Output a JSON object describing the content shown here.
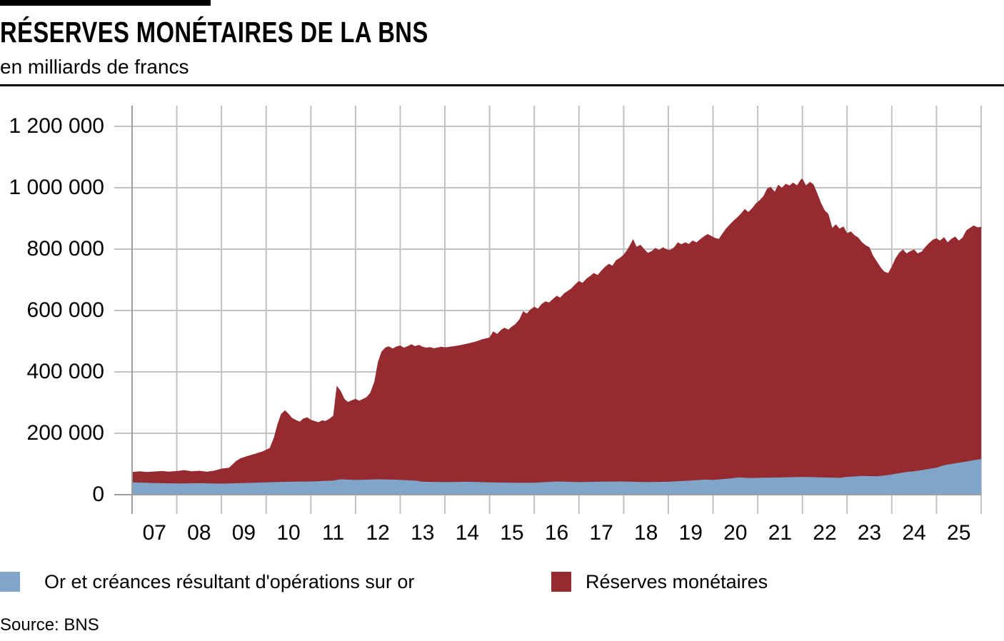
{
  "header": {
    "title": "RÉSERVES MONÉTAIRES DE LA BNS",
    "subtitle": "en milliards de francs"
  },
  "source": "Source: BNS",
  "colors": {
    "gold": "#7FA6C9",
    "reserves": "#952A31",
    "grid": "#C2C2C2",
    "axis": "#9E9E9E",
    "text": "#000000",
    "background": "#FFFFFF"
  },
  "legend": [
    {
      "label": "Or et créances résultant d'opérations sur or",
      "color": "#7FA6C9"
    },
    {
      "label": "Réserves monétaires",
      "color": "#952A31"
    }
  ],
  "chart_data": {
    "type": "area",
    "stacked": true,
    "title": "RÉSERVES MONÉTAIRES DE LA BNS",
    "unit_label": "en milliards de francs",
    "grid": true,
    "legend_position": "bottom",
    "x_range": [
      2007,
      2026
    ],
    "ylim": [
      0,
      1200000
    ],
    "y_ticks": {
      "values": [
        0,
        200000,
        400000,
        600000,
        800000,
        1000000,
        1200000
      ],
      "labels": [
        "0",
        "200 000",
        "400 000",
        "600 000",
        "800 000",
        "1 000 000",
        "1 200 000"
      ]
    },
    "x_tick_labels": [
      "07",
      "08",
      "09",
      "10",
      "11",
      "12",
      "13",
      "14",
      "15",
      "16",
      "17",
      "18",
      "19",
      "20",
      "21",
      "22",
      "23",
      "24",
      "25"
    ],
    "note": "x values are decimal years; series[1] points trace the stacked top line (total monetary reserves); series[0] is the gold layer drawn from 0.",
    "series": [
      {
        "name": "Or et créances résultant d'opérations sur or",
        "color": "#7FA6C9",
        "points": [
          [
            2007.0,
            40000
          ],
          [
            2007.5,
            38000
          ],
          [
            2008.0,
            36500
          ],
          [
            2008.5,
            37500
          ],
          [
            2009.0,
            36000
          ],
          [
            2009.5,
            38000
          ],
          [
            2010.0,
            40000
          ],
          [
            2010.5,
            42000
          ],
          [
            2011.0,
            43000
          ],
          [
            2011.5,
            46000
          ],
          [
            2011.67,
            50000
          ],
          [
            2012.0,
            48000
          ],
          [
            2012.5,
            50000
          ],
          [
            2012.83,
            49000
          ],
          [
            2013.0,
            48000
          ],
          [
            2013.33,
            46000
          ],
          [
            2013.5,
            42000
          ],
          [
            2014.0,
            41000
          ],
          [
            2014.5,
            42000
          ],
          [
            2015.0,
            40000
          ],
          [
            2015.5,
            39000
          ],
          [
            2016.0,
            39000
          ],
          [
            2016.5,
            43000
          ],
          [
            2017.0,
            41000
          ],
          [
            2017.5,
            42500
          ],
          [
            2018.0,
            43000
          ],
          [
            2018.5,
            41000
          ],
          [
            2019.0,
            42000
          ],
          [
            2019.5,
            46000
          ],
          [
            2019.83,
            49000
          ],
          [
            2020.0,
            48000
          ],
          [
            2020.33,
            52000
          ],
          [
            2020.58,
            56000
          ],
          [
            2020.83,
            54000
          ],
          [
            2021.0,
            55000
          ],
          [
            2021.5,
            56000
          ],
          [
            2022.0,
            58000
          ],
          [
            2022.5,
            56000
          ],
          [
            2022.83,
            55000
          ],
          [
            2023.0,
            58000
          ],
          [
            2023.33,
            61000
          ],
          [
            2023.67,
            60000
          ],
          [
            2023.92,
            64000
          ],
          [
            2024.17,
            70000
          ],
          [
            2024.33,
            74000
          ],
          [
            2024.5,
            76000
          ],
          [
            2024.67,
            80000
          ],
          [
            2024.83,
            84000
          ],
          [
            2025.0,
            88000
          ],
          [
            2025.17,
            96000
          ],
          [
            2025.33,
            100000
          ],
          [
            2025.5,
            104000
          ],
          [
            2025.67,
            108000
          ],
          [
            2025.83,
            112000
          ],
          [
            2026.0,
            116000
          ]
        ]
      },
      {
        "name": "Réserves monétaires",
        "color": "#952A31",
        "points": [
          [
            2007.0,
            74000
          ],
          [
            2007.17,
            76000
          ],
          [
            2007.33,
            74000
          ],
          [
            2007.5,
            75500
          ],
          [
            2007.67,
            77000
          ],
          [
            2007.83,
            75000
          ],
          [
            2008.0,
            77000
          ],
          [
            2008.17,
            80000
          ],
          [
            2008.33,
            76000
          ],
          [
            2008.5,
            78000
          ],
          [
            2008.67,
            75000
          ],
          [
            2008.83,
            78000
          ],
          [
            2009.0,
            85000
          ],
          [
            2009.17,
            88000
          ],
          [
            2009.33,
            110000
          ],
          [
            2009.42,
            118000
          ],
          [
            2009.58,
            126000
          ],
          [
            2009.75,
            133000
          ],
          [
            2009.92,
            141000
          ],
          [
            2010.08,
            152000
          ],
          [
            2010.17,
            185000
          ],
          [
            2010.25,
            228000
          ],
          [
            2010.33,
            262000
          ],
          [
            2010.42,
            275000
          ],
          [
            2010.5,
            264000
          ],
          [
            2010.58,
            250000
          ],
          [
            2010.67,
            243000
          ],
          [
            2010.75,
            238000
          ],
          [
            2010.83,
            248000
          ],
          [
            2010.92,
            252000
          ],
          [
            2011.0,
            244000
          ],
          [
            2011.08,
            240000
          ],
          [
            2011.17,
            236000
          ],
          [
            2011.25,
            242000
          ],
          [
            2011.33,
            240000
          ],
          [
            2011.42,
            248000
          ],
          [
            2011.5,
            257000
          ],
          [
            2011.58,
            355000
          ],
          [
            2011.67,
            338000
          ],
          [
            2011.75,
            312000
          ],
          [
            2011.83,
            302000
          ],
          [
            2011.92,
            308000
          ],
          [
            2012.0,
            312000
          ],
          [
            2012.08,
            306000
          ],
          [
            2012.17,
            312000
          ],
          [
            2012.25,
            318000
          ],
          [
            2012.33,
            332000
          ],
          [
            2012.42,
            368000
          ],
          [
            2012.5,
            432000
          ],
          [
            2012.58,
            466000
          ],
          [
            2012.67,
            480000
          ],
          [
            2012.75,
            483000
          ],
          [
            2012.83,
            476000
          ],
          [
            2012.92,
            483000
          ],
          [
            2013.0,
            486000
          ],
          [
            2013.08,
            479000
          ],
          [
            2013.17,
            484000
          ],
          [
            2013.25,
            490000
          ],
          [
            2013.33,
            484000
          ],
          [
            2013.42,
            488000
          ],
          [
            2013.5,
            482000
          ],
          [
            2013.58,
            479000
          ],
          [
            2013.67,
            481000
          ],
          [
            2013.75,
            477000
          ],
          [
            2013.83,
            479000
          ],
          [
            2013.92,
            482000
          ],
          [
            2014.0,
            480000
          ],
          [
            2014.17,
            483000
          ],
          [
            2014.33,
            487000
          ],
          [
            2014.5,
            492000
          ],
          [
            2014.67,
            498000
          ],
          [
            2014.83,
            506000
          ],
          [
            2015.0,
            512000
          ],
          [
            2015.08,
            532000
          ],
          [
            2015.17,
            524000
          ],
          [
            2015.25,
            536000
          ],
          [
            2015.33,
            544000
          ],
          [
            2015.42,
            538000
          ],
          [
            2015.5,
            548000
          ],
          [
            2015.58,
            556000
          ],
          [
            2015.67,
            572000
          ],
          [
            2015.75,
            598000
          ],
          [
            2015.83,
            590000
          ],
          [
            2015.92,
            604000
          ],
          [
            2016.0,
            612000
          ],
          [
            2016.08,
            606000
          ],
          [
            2016.17,
            622000
          ],
          [
            2016.25,
            630000
          ],
          [
            2016.33,
            626000
          ],
          [
            2016.42,
            638000
          ],
          [
            2016.5,
            648000
          ],
          [
            2016.58,
            642000
          ],
          [
            2016.67,
            656000
          ],
          [
            2016.75,
            664000
          ],
          [
            2016.83,
            672000
          ],
          [
            2016.92,
            686000
          ],
          [
            2017.0,
            696000
          ],
          [
            2017.08,
            690000
          ],
          [
            2017.17,
            704000
          ],
          [
            2017.25,
            712000
          ],
          [
            2017.33,
            722000
          ],
          [
            2017.42,
            716000
          ],
          [
            2017.5,
            730000
          ],
          [
            2017.58,
            742000
          ],
          [
            2017.67,
            752000
          ],
          [
            2017.75,
            746000
          ],
          [
            2017.83,
            764000
          ],
          [
            2017.92,
            772000
          ],
          [
            2018.0,
            782000
          ],
          [
            2018.08,
            798000
          ],
          [
            2018.17,
            820000
          ],
          [
            2018.21,
            833000
          ],
          [
            2018.29,
            808000
          ],
          [
            2018.38,
            814000
          ],
          [
            2018.46,
            800000
          ],
          [
            2018.54,
            788000
          ],
          [
            2018.63,
            794000
          ],
          [
            2018.71,
            804000
          ],
          [
            2018.79,
            797000
          ],
          [
            2018.88,
            806000
          ],
          [
            2018.96,
            799000
          ],
          [
            2019.04,
            797000
          ],
          [
            2019.13,
            806000
          ],
          [
            2019.21,
            822000
          ],
          [
            2019.29,
            816000
          ],
          [
            2019.38,
            822000
          ],
          [
            2019.46,
            817000
          ],
          [
            2019.54,
            828000
          ],
          [
            2019.63,
            822000
          ],
          [
            2019.71,
            832000
          ],
          [
            2019.79,
            841000
          ],
          [
            2019.88,
            849000
          ],
          [
            2019.96,
            843000
          ],
          [
            2020.04,
            837000
          ],
          [
            2020.13,
            833000
          ],
          [
            2020.21,
            851000
          ],
          [
            2020.29,
            867000
          ],
          [
            2020.38,
            881000
          ],
          [
            2020.46,
            893000
          ],
          [
            2020.54,
            903000
          ],
          [
            2020.63,
            917000
          ],
          [
            2020.71,
            931000
          ],
          [
            2020.79,
            921000
          ],
          [
            2020.88,
            934000
          ],
          [
            2020.96,
            949000
          ],
          [
            2021.04,
            959000
          ],
          [
            2021.13,
            973000
          ],
          [
            2021.21,
            997000
          ],
          [
            2021.29,
            1003000
          ],
          [
            2021.38,
            987000
          ],
          [
            2021.46,
            1010000
          ],
          [
            2021.54,
            1000000
          ],
          [
            2021.63,
            1013000
          ],
          [
            2021.71,
            1007000
          ],
          [
            2021.79,
            1017000
          ],
          [
            2021.88,
            1008000
          ],
          [
            2021.96,
            1026000
          ],
          [
            2022.0,
            1030000
          ],
          [
            2022.08,
            1008000
          ],
          [
            2022.17,
            1019000
          ],
          [
            2022.25,
            1011000
          ],
          [
            2022.33,
            983000
          ],
          [
            2022.42,
            949000
          ],
          [
            2022.5,
            926000
          ],
          [
            2022.58,
            915000
          ],
          [
            2022.67,
            869000
          ],
          [
            2022.75,
            881000
          ],
          [
            2022.83,
            867000
          ],
          [
            2022.92,
            874000
          ],
          [
            2023.0,
            852000
          ],
          [
            2023.08,
            858000
          ],
          [
            2023.17,
            845000
          ],
          [
            2023.25,
            838000
          ],
          [
            2023.33,
            823000
          ],
          [
            2023.42,
            812000
          ],
          [
            2023.5,
            806000
          ],
          [
            2023.58,
            779000
          ],
          [
            2023.67,
            759000
          ],
          [
            2023.75,
            741000
          ],
          [
            2023.83,
            727000
          ],
          [
            2023.92,
            722000
          ],
          [
            2024.0,
            743000
          ],
          [
            2024.08,
            769000
          ],
          [
            2024.17,
            789000
          ],
          [
            2024.25,
            799000
          ],
          [
            2024.33,
            786000
          ],
          [
            2024.42,
            794000
          ],
          [
            2024.5,
            799000
          ],
          [
            2024.58,
            786000
          ],
          [
            2024.67,
            792000
          ],
          [
            2024.75,
            807000
          ],
          [
            2024.83,
            819000
          ],
          [
            2024.92,
            831000
          ],
          [
            2025.0,
            835000
          ],
          [
            2025.08,
            828000
          ],
          [
            2025.17,
            839000
          ],
          [
            2025.25,
            822000
          ],
          [
            2025.33,
            833000
          ],
          [
            2025.42,
            841000
          ],
          [
            2025.5,
            828000
          ],
          [
            2025.58,
            837000
          ],
          [
            2025.67,
            861000
          ],
          [
            2025.75,
            869000
          ],
          [
            2025.83,
            877000
          ],
          [
            2025.92,
            871000
          ],
          [
            2026.0,
            873000
          ]
        ]
      }
    ]
  }
}
